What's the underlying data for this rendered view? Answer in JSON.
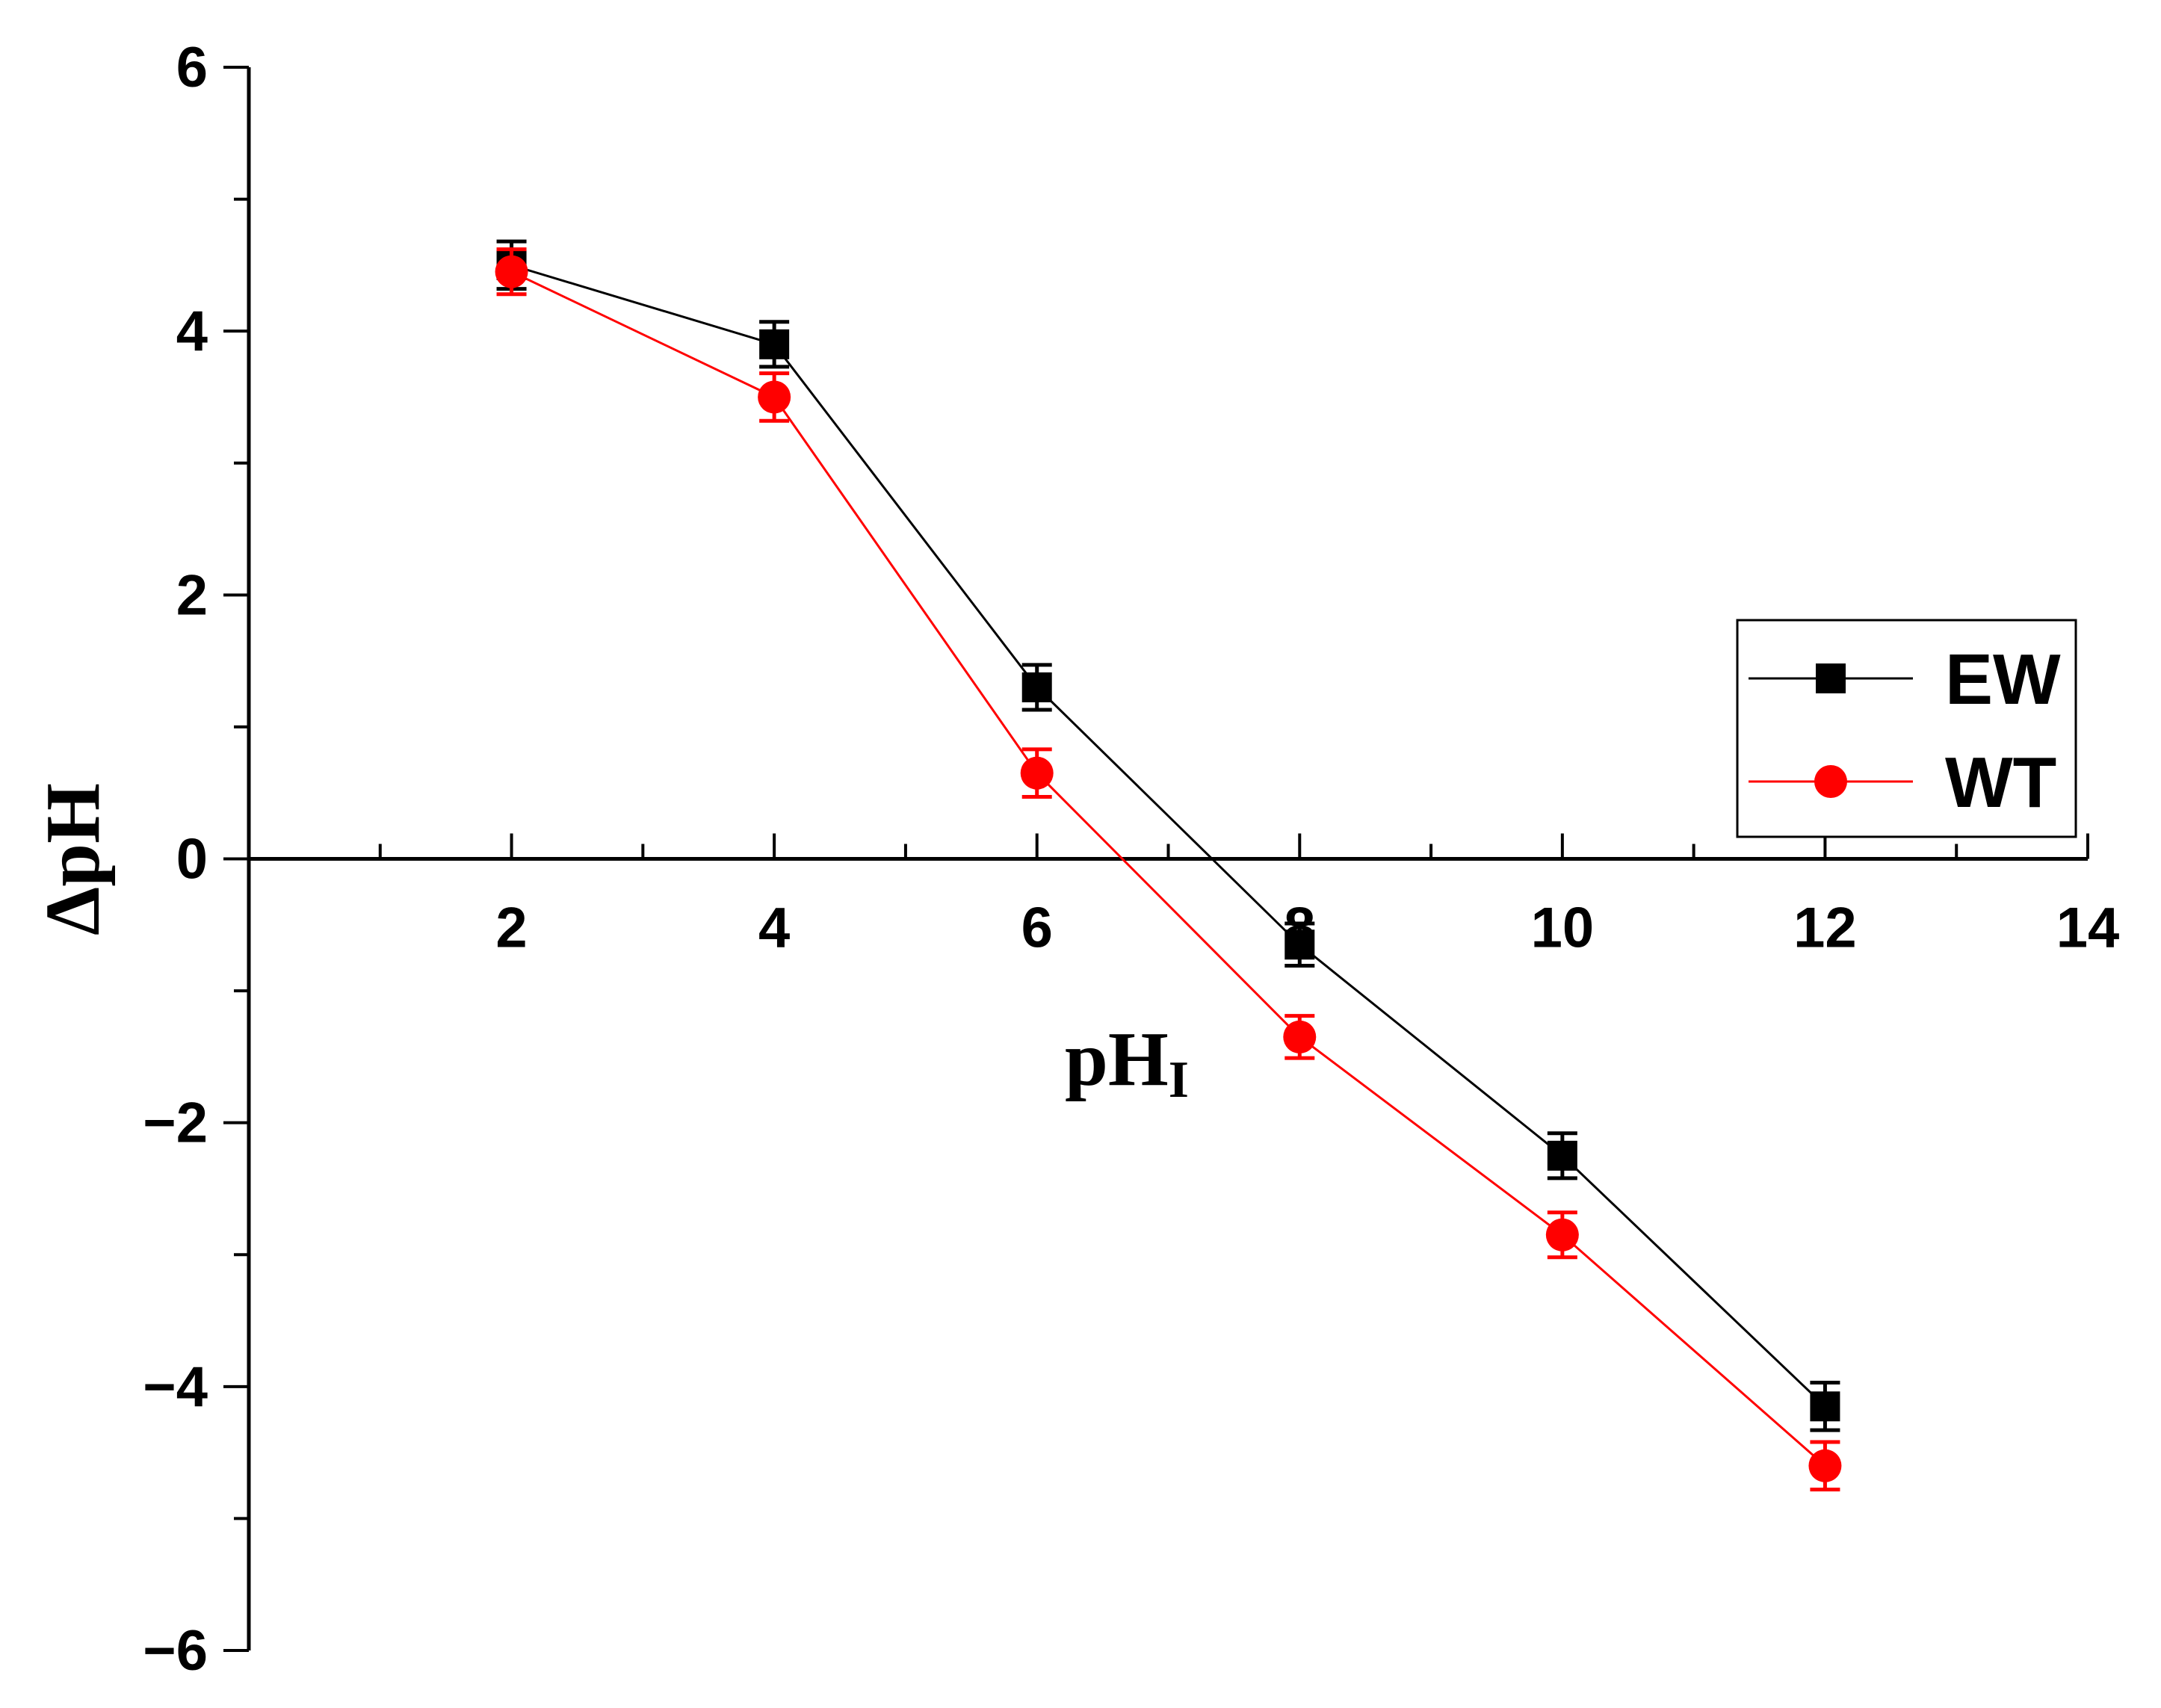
{
  "chart_data": {
    "type": "line",
    "title": "",
    "xlabel": "pH",
    "xlabel_subscript": "I",
    "ylabel": "ΔpH",
    "xlim": [
      0,
      14
    ],
    "ylim": [
      -6,
      6
    ],
    "x_ticks": [
      2,
      4,
      6,
      8,
      10,
      12,
      14
    ],
    "x_tick_labels": [
      "2",
      "4",
      "6",
      "8",
      "10",
      "12",
      "14"
    ],
    "y_ticks": [
      -6,
      -4,
      -2,
      0,
      2,
      4,
      6
    ],
    "y_tick_labels": [
      "−6",
      "−4",
      "−2",
      "0",
      "2",
      "4",
      "6"
    ],
    "grid": false,
    "legend_position": "right",
    "x": [
      2,
      4,
      6,
      8,
      10,
      12
    ],
    "series": [
      {
        "name": "EW",
        "color": "#000000",
        "marker": "square",
        "values": [
          4.5,
          3.9,
          1.3,
          -0.65,
          -2.25,
          -4.15
        ],
        "errors": [
          0.18,
          0.17,
          0.17,
          0.16,
          0.17,
          0.18
        ]
      },
      {
        "name": "WT",
        "color": "#ff0000",
        "marker": "circle",
        "values": [
          4.45,
          3.5,
          0.65,
          -1.35,
          -2.85,
          -4.6
        ],
        "errors": [
          0.17,
          0.18,
          0.18,
          0.16,
          0.17,
          0.18
        ]
      }
    ]
  }
}
